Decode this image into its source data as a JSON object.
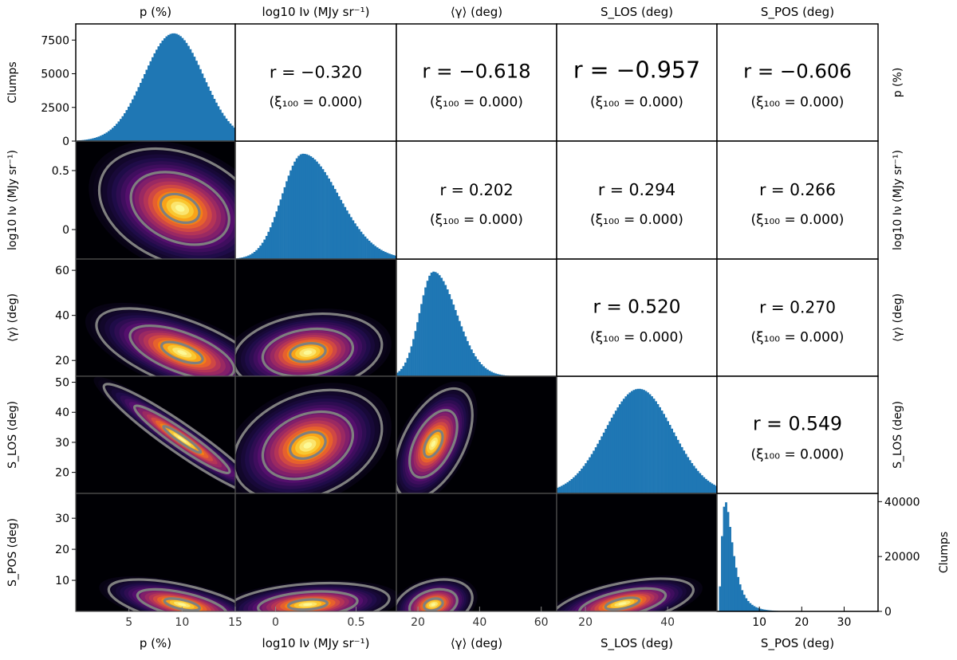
{
  "chart_data": {
    "type": "corner-plot",
    "variables": [
      {
        "id": "p",
        "label": "p (%)",
        "range": [
          0,
          15
        ],
        "ticks": [
          5,
          10,
          15
        ],
        "yticks": [
          0,
          2500,
          5000,
          7500
        ]
      },
      {
        "id": "logI",
        "label": "log10 Iν (MJy sr⁻¹)",
        "range": [
          -0.25,
          0.75
        ],
        "ticks": [
          0.0,
          0.5
        ],
        "yticks": [
          0.0,
          0.5
        ]
      },
      {
        "id": "gamma",
        "label": "⟨γ⟩ (deg)",
        "range": [
          13,
          65
        ],
        "ticks": [
          20,
          40,
          60
        ],
        "yticks": [
          20,
          40,
          60
        ]
      },
      {
        "id": "slos",
        "label": "S_LOS (deg)",
        "range": [
          13,
          52
        ],
        "ticks": [
          20,
          40
        ],
        "yticks": [
          20,
          30,
          40,
          50
        ]
      },
      {
        "id": "spos",
        "label": "S_POS (deg)",
        "range": [
          0,
          38
        ],
        "ticks": [
          10,
          20,
          30
        ],
        "yticks": [
          10,
          20,
          30
        ]
      }
    ],
    "diag_ylabel_left": "Clumps",
    "diag_ylabel_right": "Clumps",
    "last_hist_yticks": [
      0,
      20000,
      40000
    ],
    "histograms": [
      {
        "var": "p",
        "dist": "gauss",
        "mean": 9.2,
        "sd": 2.8,
        "peak": 8000,
        "ymax": 8700
      },
      {
        "var": "logI",
        "dist": "skew",
        "mode": 0.17,
        "sdl": 0.13,
        "sdr": 0.22,
        "peak": 1,
        "ymax": 1.12
      },
      {
        "var": "gamma",
        "dist": "skew",
        "mode": 25,
        "sdl": 4.5,
        "sdr": 7.5,
        "peak": 1,
        "ymax": 1.12
      },
      {
        "var": "slos",
        "dist": "gauss",
        "mean": 33,
        "sd": 8.2,
        "peak": 1,
        "ymax": 1.12
      },
      {
        "var": "spos",
        "dist": "lognorm",
        "mode": 2.0,
        "peak": 40000,
        "ymax": 43000
      }
    ],
    "correlations": [
      {
        "row": 0,
        "col": 1,
        "r": "r = −0.320",
        "xi": "(ξ₁₀₀ = 0.000)",
        "strength": 0.32
      },
      {
        "row": 0,
        "col": 2,
        "r": "r = −0.618",
        "xi": "(ξ₁₀₀ = 0.000)",
        "strength": 0.618
      },
      {
        "row": 0,
        "col": 3,
        "r": "r = −0.957",
        "xi": "(ξ₁₀₀ = 0.000)",
        "strength": 0.957
      },
      {
        "row": 0,
        "col": 4,
        "r": "r = −0.606",
        "xi": "(ξ₁₀₀ = 0.000)",
        "strength": 0.606
      },
      {
        "row": 1,
        "col": 2,
        "r": "r = 0.202",
        "xi": "(ξ₁₀₀ = 0.000)",
        "strength": 0.202
      },
      {
        "row": 1,
        "col": 3,
        "r": "r = 0.294",
        "xi": "(ξ₁₀₀ = 0.000)",
        "strength": 0.294
      },
      {
        "row": 1,
        "col": 4,
        "r": "r = 0.266",
        "xi": "(ξ₁₀₀ = 0.000)",
        "strength": 0.266
      },
      {
        "row": 2,
        "col": 3,
        "r": "r = 0.520",
        "xi": "(ξ₁₀₀ = 0.000)",
        "strength": 0.52
      },
      {
        "row": 2,
        "col": 4,
        "r": "r = 0.270",
        "xi": "(ξ₁₀₀ = 0.000)",
        "strength": 0.27
      },
      {
        "row": 3,
        "col": 4,
        "r": "r = 0.549",
        "xi": "(ξ₁₀₀ = 0.000)",
        "strength": 0.549
      }
    ],
    "density_panels": [
      {
        "row": 1,
        "col": 0,
        "cx": 9.8,
        "cy": 0.18,
        "sx": 3.3,
        "sy": 0.22,
        "rho": -0.3
      },
      {
        "row": 2,
        "col": 0,
        "cx": 10.0,
        "cy": 23.5,
        "sx": 3.5,
        "sy": 8.5,
        "rho": -0.62
      },
      {
        "row": 2,
        "col": 1,
        "cx": 0.2,
        "cy": 23.5,
        "sx": 0.2,
        "sy": 7.5,
        "rho": 0.2
      },
      {
        "row": 3,
        "col": 0,
        "cx": 10.0,
        "cy": 31.0,
        "sx": 3.2,
        "sy": 8.0,
        "rho": -0.95
      },
      {
        "row": 3,
        "col": 1,
        "cx": 0.2,
        "cy": 29.0,
        "sx": 0.2,
        "sy": 8.0,
        "rho": 0.3
      },
      {
        "row": 3,
        "col": 2,
        "cx": 25.0,
        "cy": 29.5,
        "sx": 5.5,
        "sy": 8.0,
        "rho": 0.52
      },
      {
        "row": 4,
        "col": 0,
        "cx": 10.0,
        "cy": 2.2,
        "sx": 3.0,
        "sy": 3.5,
        "rho": -0.6
      },
      {
        "row": 4,
        "col": 1,
        "cx": 0.2,
        "cy": 2.2,
        "sx": 0.22,
        "sy": 3.0,
        "rho": 0.27
      },
      {
        "row": 4,
        "col": 2,
        "cx": 25.0,
        "cy": 2.2,
        "sx": 5.5,
        "sy": 3.5,
        "rho": 0.27
      },
      {
        "row": 4,
        "col": 3,
        "cx": 29.0,
        "cy": 2.5,
        "sx": 7.5,
        "sy": 3.5,
        "rho": 0.55
      }
    ],
    "colormap": "inferno",
    "hist_color": "#1f77b4",
    "contour_color": "#7f7f7f"
  }
}
